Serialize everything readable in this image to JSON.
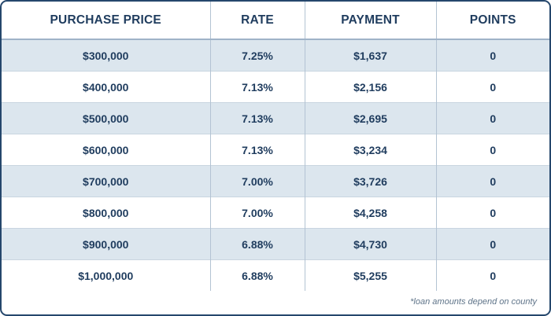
{
  "table": {
    "headers": [
      "PURCHASE PRICE",
      "RATE",
      "PAYMENT",
      "POINTS"
    ],
    "rows": [
      {
        "purchase_price": "$300,000",
        "rate": "7.25%",
        "payment": "$1,637",
        "points": "0"
      },
      {
        "purchase_price": "$400,000",
        "rate": "7.13%",
        "payment": "$2,156",
        "points": "0"
      },
      {
        "purchase_price": "$500,000",
        "rate": "7.13%",
        "payment": "$2,695",
        "points": "0"
      },
      {
        "purchase_price": "$600,000",
        "rate": "7.13%",
        "payment": "$3,234",
        "points": "0"
      },
      {
        "purchase_price": "$700,000",
        "rate": "7.00%",
        "payment": "$3,726",
        "points": "0"
      },
      {
        "purchase_price": "$800,000",
        "rate": "7.00%",
        "payment": "$4,258",
        "points": "0"
      },
      {
        "purchase_price": "$900,000",
        "rate": "6.88%",
        "payment": "$4,730",
        "points": "0"
      },
      {
        "purchase_price": "$1,000,000",
        "rate": "6.88%",
        "payment": "$5,255",
        "points": "0"
      }
    ]
  },
  "footnote": "*loan amounts depend on county",
  "colors": {
    "border": "#25476c",
    "text": "#1f3c5e",
    "row_shade": "#dce6ee",
    "footnote_text": "#5f7489"
  }
}
